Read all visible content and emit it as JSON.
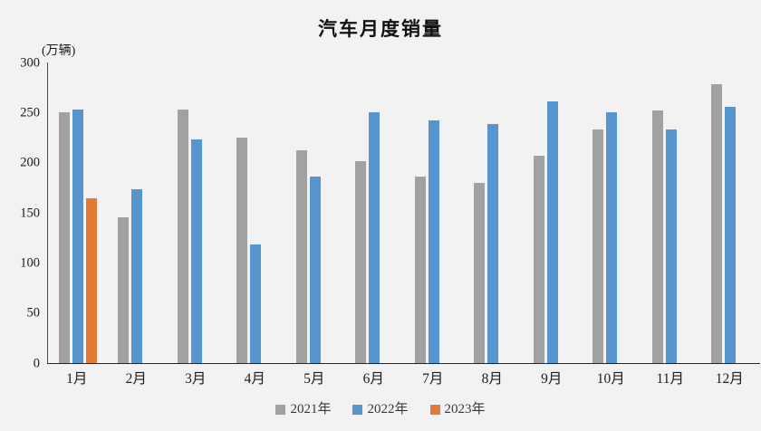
{
  "chart_data": {
    "type": "bar",
    "title": "汽车月度销量",
    "unit_label": "(万辆)",
    "categories": [
      "1月",
      "2月",
      "3月",
      "4月",
      "5月",
      "6月",
      "7月",
      "8月",
      "9月",
      "10月",
      "11月",
      "12月"
    ],
    "series": [
      {
        "name": "2021年",
        "color": "#A0A1A2",
        "values": [
          250.3,
          145.5,
          252.6,
          225.2,
          212.8,
          201.5,
          186.4,
          179.9,
          206.7,
          233.3,
          252.2,
          278.6
        ]
      },
      {
        "name": "2022年",
        "color": "#5894CE",
        "values": [
          253.1,
          173.7,
          223.4,
          118.1,
          186.2,
          250.2,
          242.0,
          238.3,
          261.0,
          250.5,
          232.8,
          255.7
        ]
      },
      {
        "name": "2023年",
        "color": "#E07B39",
        "values": [
          164.9,
          null,
          null,
          null,
          null,
          null,
          null,
          null,
          null,
          null,
          null,
          null
        ]
      }
    ],
    "yticks": [
      0,
      50,
      100,
      150,
      200,
      250,
      300
    ],
    "ylim": [
      0,
      300
    ],
    "grid": false,
    "legend_position": "bottom"
  },
  "style_colors": {
    "background": "#F2F2F2",
    "axis_line": "#262626",
    "text": "#1a1a1a"
  }
}
